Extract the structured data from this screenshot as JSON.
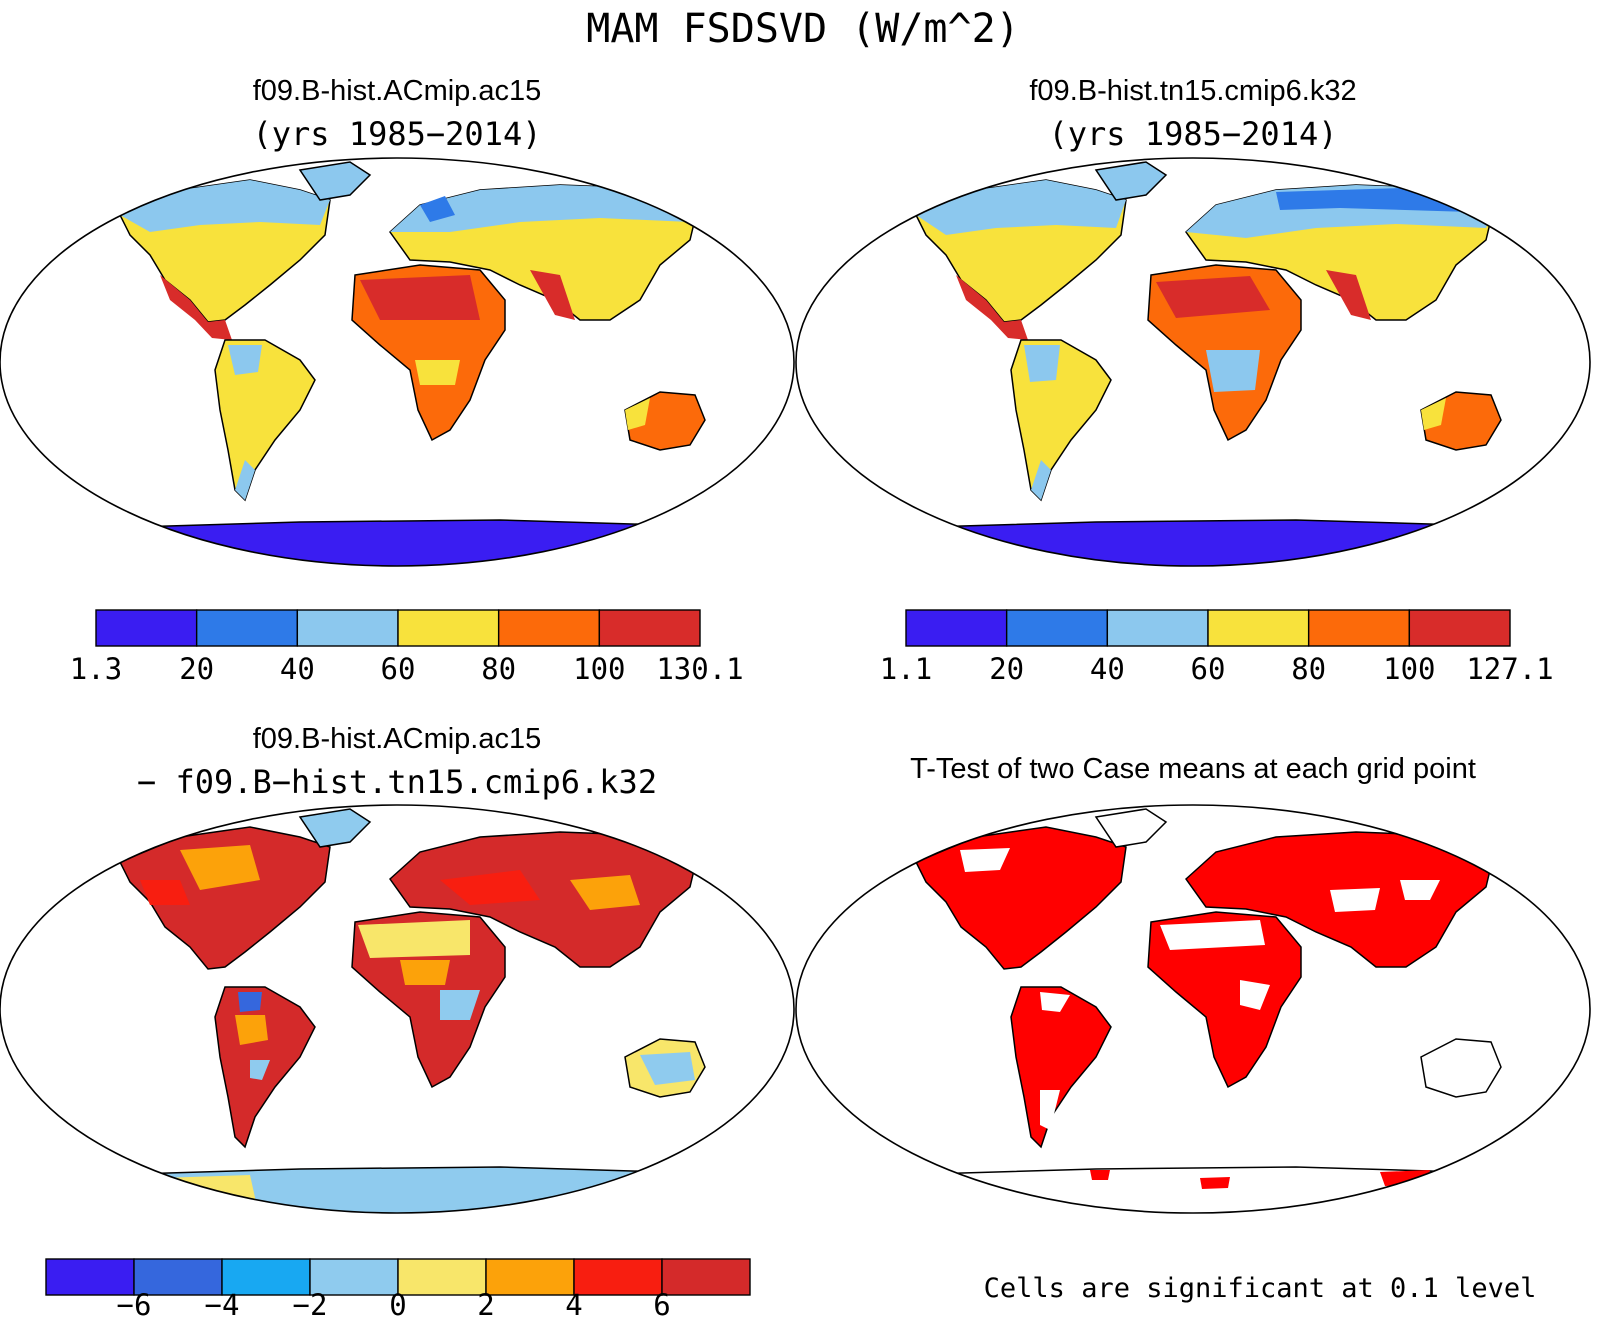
{
  "title": "MAM FSDSVD (W/m^2)",
  "panels": [
    {
      "title_line1": "f09.B-hist.ACmip.ac15",
      "title_line2": "(yrs 1985−2014)",
      "colorbar": {
        "colors": [
          "#3a1df2",
          "#2e7ae8",
          "#8cc8ee",
          "#f8e23c",
          "#fc6a0a",
          "#d82c2a"
        ],
        "labels": [
          "1.3",
          "20",
          "40",
          "60",
          "80",
          "100",
          "130.1"
        ]
      }
    },
    {
      "title_line1": "f09.B-hist.tn15.cmip6.k32",
      "title_line2": "(yrs 1985−2014)",
      "colorbar": {
        "colors": [
          "#3a1df2",
          "#2e7ae8",
          "#8cc8ee",
          "#f8e23c",
          "#fc6a0a",
          "#d82c2a"
        ],
        "labels": [
          "1.1",
          "20",
          "40",
          "60",
          "80",
          "100",
          "127.1"
        ]
      }
    },
    {
      "title_line1": "f09.B-hist.ACmip.ac15",
      "title_line2": "− f09.B−hist.tn15.cmip6.k32",
      "colorbar": {
        "colors": [
          "#3a1df2",
          "#3567dd",
          "#18a8f2",
          "#8fcbee",
          "#f8e66a",
          "#fca20a",
          "#f81e10",
          "#d42a2a"
        ],
        "labels": [
          "−6",
          "−4",
          "−2",
          "0",
          "2",
          "4",
          "6"
        ]
      }
    },
    {
      "title_line1": "T-Test of two Case means at each grid point",
      "footnote": "Cells are significant at 0.1 level",
      "significance_color": "#ff0000"
    }
  ]
}
